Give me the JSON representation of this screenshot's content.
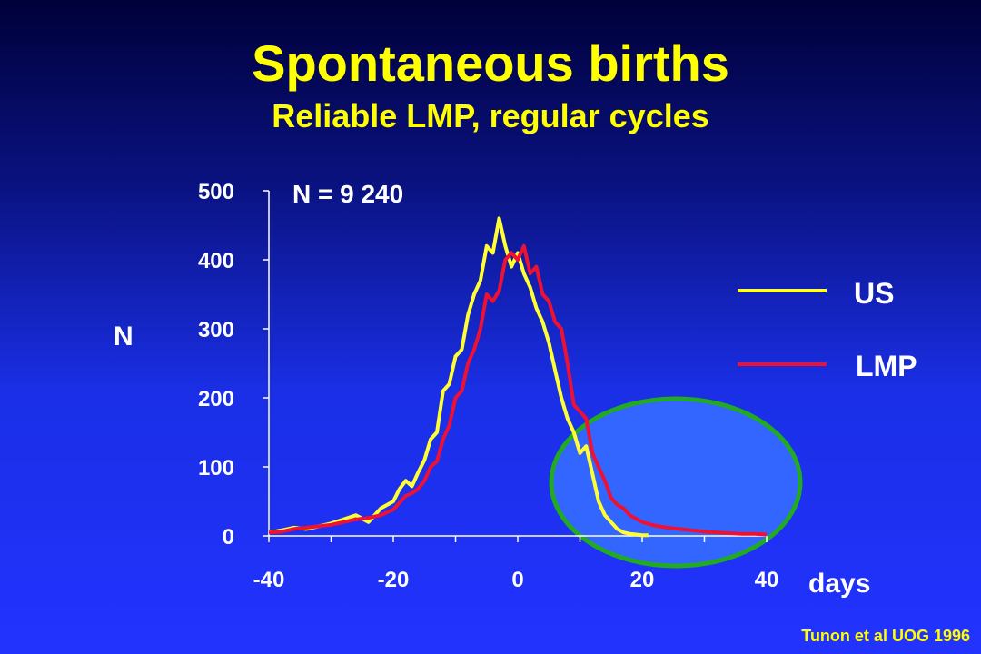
{
  "title": "Spontaneous births",
  "subtitle": "Reliable LMP, regular cycles",
  "annotation": "N = 9 240",
  "citation": "Tunon et al UOG 1996",
  "colors": {
    "background_top": "#00003a",
    "background_bottom": "#2233ff",
    "title": "#ffff00",
    "us": "#ffff33",
    "lmp": "#ee1133",
    "ellipse_fill": "#3366ff",
    "ellipse_stroke": "#22aa22"
  },
  "chart_data": {
    "type": "line",
    "xlabel": "days",
    "ylabel": "N",
    "xlim": [
      -40,
      40
    ],
    "ylim": [
      0,
      500
    ],
    "xticks": [
      -40,
      -20,
      0,
      20,
      40
    ],
    "yticks": [
      0,
      100,
      200,
      300,
      400,
      500
    ],
    "grid": false,
    "legend_position": "right",
    "series": [
      {
        "name": "US",
        "color": "#ffff33",
        "x": [
          -40,
          -38,
          -36,
          -34,
          -32,
          -30,
          -28,
          -26,
          -24,
          -22,
          -20,
          -19,
          -18,
          -17,
          -16,
          -15,
          -14,
          -13,
          -12,
          -11,
          -10,
          -9,
          -8,
          -7,
          -6,
          -5,
          -4,
          -3,
          -2,
          -1,
          0,
          1,
          2,
          3,
          4,
          5,
          6,
          7,
          8,
          9,
          10,
          11,
          12,
          13,
          14,
          15,
          16,
          17,
          18,
          19,
          20,
          21
        ],
        "y": [
          5,
          8,
          12,
          10,
          14,
          18,
          24,
          30,
          20,
          40,
          50,
          68,
          80,
          72,
          92,
          110,
          140,
          150,
          210,
          220,
          260,
          270,
          320,
          350,
          370,
          420,
          410,
          460,
          420,
          390,
          410,
          380,
          360,
          330,
          310,
          280,
          240,
          200,
          170,
          150,
          120,
          130,
          90,
          50,
          30,
          20,
          10,
          5,
          3,
          2,
          1,
          1
        ]
      },
      {
        "name": "LMP",
        "color": "#ee1133",
        "x": [
          -40,
          -38,
          -36,
          -34,
          -32,
          -30,
          -28,
          -26,
          -24,
          -22,
          -20,
          -19,
          -18,
          -17,
          -16,
          -15,
          -14,
          -13,
          -12,
          -11,
          -10,
          -9,
          -8,
          -7,
          -6,
          -5,
          -4,
          -3,
          -2,
          -1,
          0,
          1,
          2,
          3,
          4,
          5,
          6,
          7,
          8,
          9,
          10,
          11,
          12,
          13,
          14,
          15,
          16,
          17,
          18,
          19,
          20,
          22,
          24,
          26,
          28,
          30,
          32,
          34,
          36,
          38,
          40
        ],
        "y": [
          5,
          6,
          10,
          12,
          14,
          16,
          20,
          24,
          26,
          30,
          38,
          48,
          58,
          62,
          68,
          80,
          100,
          108,
          140,
          160,
          200,
          210,
          250,
          270,
          300,
          350,
          340,
          355,
          400,
          410,
          400,
          420,
          380,
          390,
          350,
          340,
          310,
          300,
          250,
          190,
          180,
          170,
          120,
          100,
          80,
          55,
          45,
          40,
          30,
          25,
          20,
          15,
          12,
          10,
          8,
          6,
          5,
          4,
          3,
          3,
          2
        ]
      }
    ]
  }
}
